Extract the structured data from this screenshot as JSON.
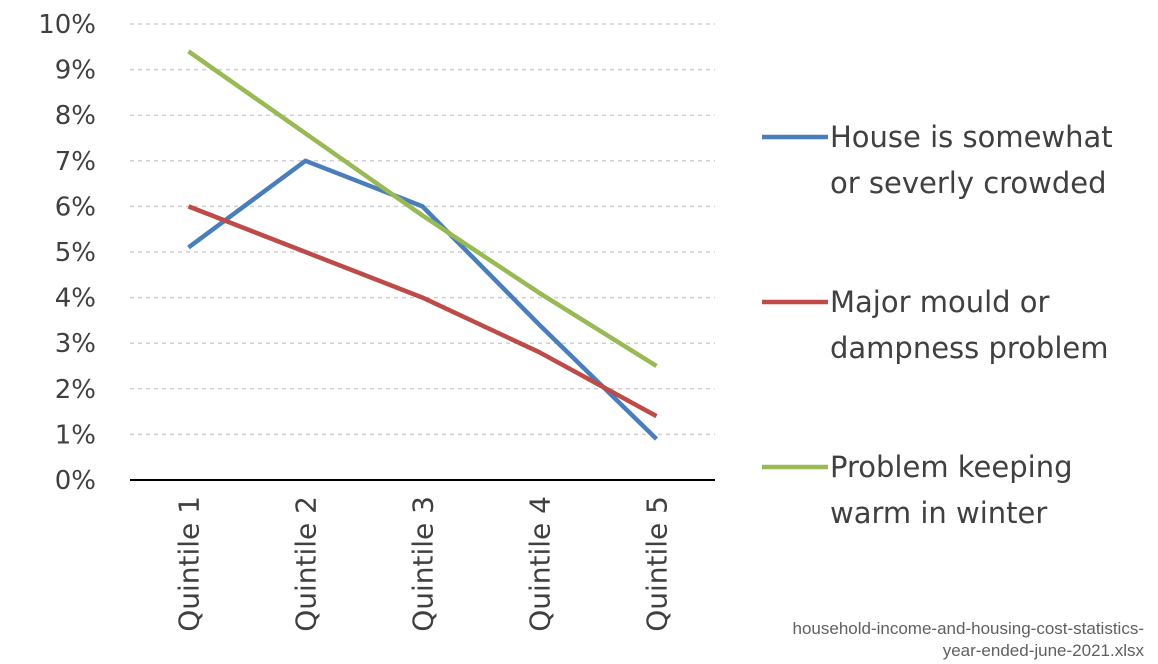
{
  "chart_data": {
    "type": "line",
    "categories": [
      "Quintile 1",
      "Quintile 2",
      "Quintile 3",
      "Quintile 4",
      "Quintile 5"
    ],
    "series": [
      {
        "name": "House is somewhat or severly crowded",
        "color": "#4a7ebb",
        "values": [
          5.1,
          7.0,
          6.0,
          3.4,
          0.9
        ]
      },
      {
        "name": "Major mould or dampness problem",
        "color": "#be4b48",
        "values": [
          6.0,
          5.0,
          4.0,
          2.8,
          1.4
        ]
      },
      {
        "name": "Problem keeping warm in winter",
        "color": "#98b954",
        "values": [
          9.4,
          7.6,
          5.8,
          4.1,
          2.5
        ]
      }
    ],
    "ylim": [
      0,
      10
    ],
    "yticks": [
      {
        "value": 0,
        "label": "0%"
      },
      {
        "value": 1,
        "label": "1%"
      },
      {
        "value": 2,
        "label": "2%"
      },
      {
        "value": 3,
        "label": "3%"
      },
      {
        "value": 4,
        "label": "4%"
      },
      {
        "value": 5,
        "label": "5%"
      },
      {
        "value": 6,
        "label": "6%"
      },
      {
        "value": 7,
        "label": "7%"
      },
      {
        "value": 8,
        "label": "8%"
      },
      {
        "value": 9,
        "label": "9%"
      },
      {
        "value": 10,
        "label": "10%"
      }
    ],
    "grid": true,
    "legend": "right",
    "source": "household-income-and-housing-cost-statistics-year-ended-june-2021.xlsx"
  }
}
